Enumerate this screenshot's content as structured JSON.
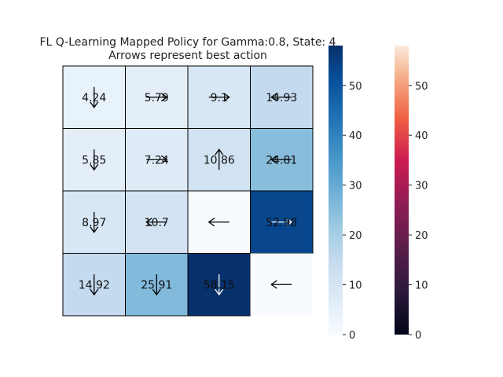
{
  "chart_data": {
    "type": "heatmap",
    "title": "FL Q-Learning Mapped Policy for Gamma:0.8, State: 4",
    "subtitle": "Arrows represent best action",
    "grid": {
      "rows": 4,
      "cols": 4
    },
    "values": [
      [
        4.24,
        5.79,
        9.1,
        14.93
      ],
      [
        5.85,
        7.24,
        10.86,
        24.81
      ],
      [
        8.97,
        10.7,
        0,
        52.98
      ],
      [
        14.92,
        25.91,
        58.15,
        0
      ]
    ],
    "value_labels": [
      [
        "4.24",
        "5.79",
        "9.1",
        "14.93"
      ],
      [
        "5.85",
        "7.24",
        "10.86",
        "24.81"
      ],
      [
        "8.97",
        "10.7",
        "",
        "52.98"
      ],
      [
        "14.92",
        "25.91",
        "58.15",
        ""
      ]
    ],
    "arrows": [
      [
        "down",
        "right",
        "right",
        "left"
      ],
      [
        "down",
        "right",
        "up",
        "left"
      ],
      [
        "down",
        "left",
        "left",
        "right"
      ],
      [
        "down",
        "down",
        "down",
        "left"
      ]
    ],
    "colorbars": [
      {
        "name": "Blues",
        "range": [
          0,
          58
        ],
        "ticks": [
          0,
          10,
          20,
          30,
          40,
          50
        ],
        "colors": [
          "#f7fbff",
          "#08306b"
        ]
      },
      {
        "name": "rocket",
        "range": [
          0,
          58
        ],
        "ticks": [
          0,
          10,
          20,
          30,
          40,
          50
        ],
        "colors": [
          "#03051a",
          "#faebdd"
        ]
      }
    ]
  }
}
